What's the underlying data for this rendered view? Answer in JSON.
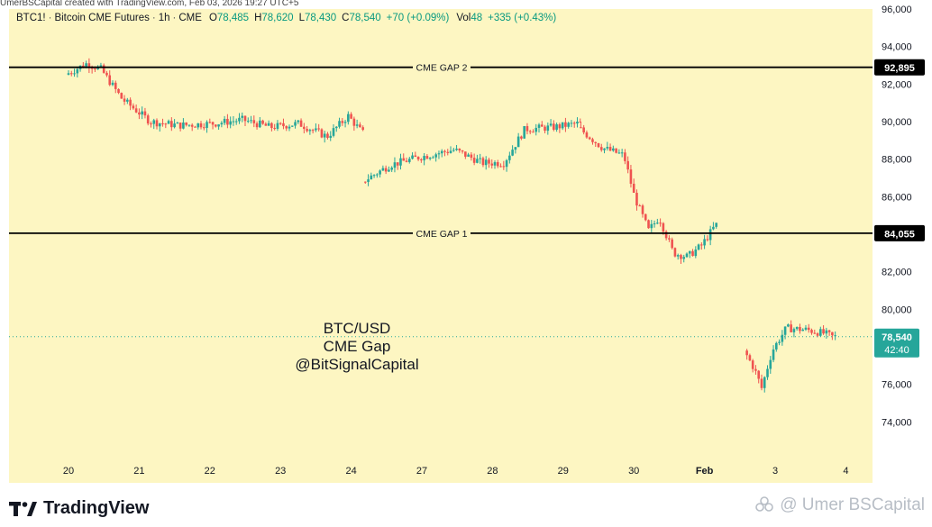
{
  "header": {
    "symbol": "BTC1!",
    "name": "Bitcoin CME Futures",
    "interval": "1h",
    "exchange": "CME",
    "o_label": "O",
    "o_val": "78,485",
    "h_label": "H",
    "h_val": "78,620",
    "l_label": "L",
    "l_val": "78,430",
    "c_label": "C",
    "c_val": "78,540",
    "change": "+70 (+0.09%)",
    "vol_label": "Vol",
    "vol_val": "48",
    "vol_change": "+335 (+0.43%)"
  },
  "top_strip": "UmerBSCapital created with TradingView.com, Feb 03, 2026 19:27 UTC+5",
  "footer": {
    "brand": "TradingView"
  },
  "watermark": {
    "text": "@ Umer BSCapital"
  },
  "colors": {
    "background": "#fdf6c2",
    "up": "#26a69a",
    "down": "#ef5350",
    "line": "#000000",
    "price_tag": "#26a69a"
  },
  "chart_data": {
    "type": "candlestick",
    "y_range": [
      72000,
      96000
    ],
    "y_ticks": [
      "96,000",
      "94,000",
      "92,000",
      "90,000",
      "88,000",
      "86,000",
      "84,000",
      "82,000",
      "80,000",
      "78,000",
      "76,000",
      "74,000"
    ],
    "y_tick_values": [
      96000,
      94000,
      92000,
      90000,
      88000,
      86000,
      84000,
      82000,
      80000,
      78000,
      76000,
      74000
    ],
    "x_ticks": [
      "20",
      "21",
      "22",
      "23",
      "24",
      "27",
      "28",
      "29",
      "30",
      "Feb",
      "3",
      "4"
    ],
    "x_tick_bold": [
      false,
      false,
      false,
      false,
      false,
      false,
      false,
      false,
      false,
      true,
      false,
      false
    ],
    "segments": [
      {
        "from_day": 0,
        "to_day": 4.2,
        "anchors": [
          [
            0,
            92500
          ],
          [
            0.3,
            93100
          ],
          [
            0.5,
            92800
          ],
          [
            0.8,
            91200
          ],
          [
            1.2,
            90000
          ],
          [
            1.6,
            89800
          ],
          [
            2.1,
            89900
          ],
          [
            2.5,
            90100
          ],
          [
            2.9,
            89700
          ],
          [
            3.3,
            89900
          ],
          [
            3.7,
            89200
          ],
          [
            4.0,
            90300
          ],
          [
            4.2,
            89400
          ]
        ]
      },
      {
        "from_day": 4.2,
        "to_day": 7.25,
        "anchors": [
          [
            4.2,
            86800
          ],
          [
            4.6,
            87700
          ],
          [
            5.0,
            88100
          ],
          [
            5.5,
            88500
          ],
          [
            5.9,
            87800
          ],
          [
            6.2,
            87800
          ],
          [
            6.5,
            89600
          ],
          [
            6.9,
            89700
          ],
          [
            7.25,
            89900
          ]
        ]
      },
      {
        "from_day": 7.25,
        "to_day": 10.3,
        "anchors": [
          [
            7.25,
            89700
          ],
          [
            7.6,
            88600
          ],
          [
            7.9,
            88200
          ],
          [
            8.05,
            86000
          ],
          [
            8.25,
            84200
          ],
          [
            8.4,
            84900
          ],
          [
            8.6,
            83000
          ],
          [
            8.8,
            82800
          ],
          [
            9.0,
            83400
          ],
          [
            9.2,
            84500
          ]
        ]
      },
      {
        "from_day": 9.6,
        "to_day": 10.8,
        "anchors": [
          [
            9.6,
            77800
          ],
          [
            9.75,
            76800
          ],
          [
            9.85,
            75800
          ],
          [
            10.0,
            77800
          ],
          [
            10.2,
            79000
          ],
          [
            10.5,
            78900
          ],
          [
            10.75,
            78700
          ],
          [
            10.85,
            78540
          ]
        ]
      }
    ],
    "gaps": [
      {
        "label": "CME GAP 2",
        "value": 92895,
        "tag": "92,895"
      },
      {
        "label": "CME GAP 1",
        "value": 84055,
        "tag": "84,055"
      }
    ],
    "last_price": {
      "value": 78540,
      "tag": "78,540",
      "countdown": "42:40"
    },
    "annotation": [
      "BTC/USD",
      "CME Gap",
      "@BitSignalCapital"
    ]
  }
}
